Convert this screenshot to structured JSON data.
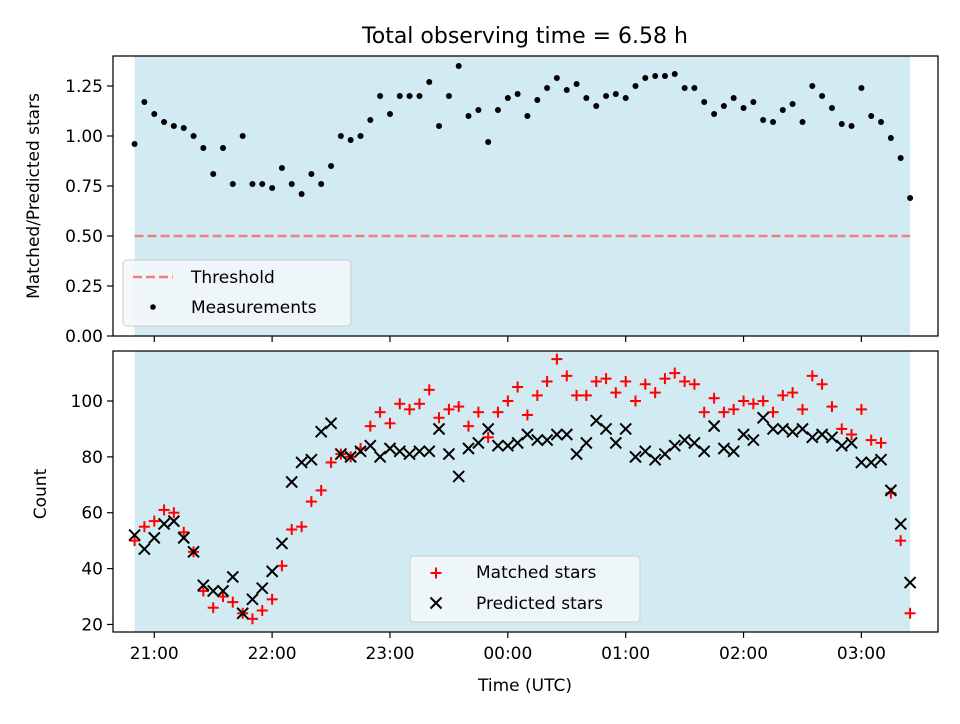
{
  "title": "Total observing time = 6.58 h",
  "colors": {
    "shade": "#add8e6",
    "threshold": "#f08080",
    "measurements": "#000000",
    "matched": "#ff0000",
    "predicted": "#000000"
  },
  "chart_data": [
    {
      "type": "scatter",
      "ylabel": "Matched/Predicted stars",
      "xlim": [
        -0.1833,
        6.8167
      ],
      "ylim": [
        0.0,
        1.4
      ],
      "yticks": [
        0.0,
        0.25,
        0.5,
        0.75,
        1.0,
        1.25
      ],
      "ytick_labels": [
        "0.00",
        "0.25",
        "0.50",
        "0.75",
        "1.00",
        "1.25"
      ],
      "shaded_x_range": [
        0.0,
        6.58
      ],
      "threshold": {
        "name": "Threshold",
        "value": 0.5,
        "style": "dashed"
      },
      "legend": {
        "location": "lower-left",
        "entries": [
          "Threshold",
          "Measurements"
        ]
      },
      "series": [
        {
          "name": "Measurements",
          "marker": "dot",
          "x": [
            0.0,
            0.083,
            0.167,
            0.25,
            0.333,
            0.417,
            0.5,
            0.583,
            0.667,
            0.75,
            0.833,
            0.917,
            1.0,
            1.083,
            1.167,
            1.25,
            1.333,
            1.417,
            1.5,
            1.583,
            1.667,
            1.75,
            1.833,
            1.917,
            2.0,
            2.083,
            2.167,
            2.25,
            2.333,
            2.417,
            2.5,
            2.583,
            2.667,
            2.75,
            2.833,
            2.917,
            3.0,
            3.083,
            3.167,
            3.25,
            3.333,
            3.417,
            3.5,
            3.583,
            3.667,
            3.75,
            3.833,
            3.917,
            4.0,
            4.083,
            4.167,
            4.25,
            4.333,
            4.417,
            4.5,
            4.583,
            4.667,
            4.75,
            4.833,
            4.917,
            5.0,
            5.083,
            5.167,
            5.25,
            5.333,
            5.417,
            5.5,
            5.583,
            5.667,
            5.75,
            5.833,
            5.917,
            6.0,
            6.083,
            6.167,
            6.25,
            6.333,
            6.417,
            6.5,
            6.58
          ],
          "y": [
            0.96,
            1.17,
            1.11,
            1.07,
            1.05,
            1.04,
            1.0,
            0.94,
            0.81,
            0.94,
            0.76,
            1.0,
            0.76,
            0.76,
            0.74,
            0.84,
            0.76,
            0.71,
            0.81,
            0.76,
            0.85,
            1.0,
            0.98,
            1.0,
            1.08,
            1.2,
            1.11,
            1.2,
            1.2,
            1.2,
            1.27,
            1.05,
            1.2,
            1.35,
            1.1,
            1.13,
            0.97,
            1.13,
            1.19,
            1.21,
            1.1,
            1.18,
            1.24,
            1.29,
            1.23,
            1.26,
            1.19,
            1.15,
            1.2,
            1.21,
            1.19,
            1.25,
            1.29,
            1.3,
            1.3,
            1.31,
            1.24,
            1.24,
            1.17,
            1.11,
            1.15,
            1.19,
            1.14,
            1.17,
            1.08,
            1.07,
            1.13,
            1.16,
            1.07,
            1.25,
            1.2,
            1.14,
            1.06,
            1.05,
            1.24,
            1.1,
            1.07,
            0.99,
            0.89,
            0.69
          ]
        }
      ]
    },
    {
      "type": "scatter",
      "xlabel": "Time (UTC)",
      "ylabel": "Count",
      "xlim": [
        -0.1833,
        6.8167
      ],
      "ylim": [
        17.3,
        117.9
      ],
      "yticks": [
        20,
        40,
        60,
        80,
        100
      ],
      "ytick_labels": [
        "20",
        "40",
        "60",
        "80",
        "100"
      ],
      "xticks": [
        0.1667,
        1.1667,
        2.1667,
        3.1667,
        4.1667,
        5.1667,
        6.1667
      ],
      "xtick_labels": [
        "21:00",
        "22:00",
        "23:00",
        "00:00",
        "01:00",
        "02:00",
        "03:00"
      ],
      "shaded_x_range": [
        0.0,
        6.58
      ],
      "legend": {
        "location": "lower-center",
        "entries": [
          "Matched stars",
          "Predicted stars"
        ]
      },
      "series": [
        {
          "name": "Matched stars",
          "marker": "plus",
          "x": [
            0.0,
            0.083,
            0.167,
            0.25,
            0.333,
            0.417,
            0.5,
            0.583,
            0.667,
            0.75,
            0.833,
            0.917,
            1.0,
            1.083,
            1.167,
            1.25,
            1.333,
            1.417,
            1.5,
            1.583,
            1.667,
            1.75,
            1.833,
            1.917,
            2.0,
            2.083,
            2.167,
            2.25,
            2.333,
            2.417,
            2.5,
            2.583,
            2.667,
            2.75,
            2.833,
            2.917,
            3.0,
            3.083,
            3.167,
            3.25,
            3.333,
            3.417,
            3.5,
            3.583,
            3.667,
            3.75,
            3.833,
            3.917,
            4.0,
            4.083,
            4.167,
            4.25,
            4.333,
            4.417,
            4.5,
            4.583,
            4.667,
            4.75,
            4.833,
            4.917,
            5.0,
            5.083,
            5.167,
            5.25,
            5.333,
            5.417,
            5.5,
            5.583,
            5.667,
            5.75,
            5.833,
            5.917,
            6.0,
            6.083,
            6.167,
            6.25,
            6.333,
            6.417,
            6.5,
            6.58
          ],
          "y": [
            50,
            55,
            57,
            61,
            60,
            53,
            46,
            32,
            26,
            30,
            28,
            24,
            22,
            25,
            29,
            41,
            54,
            55,
            64,
            68,
            78,
            81,
            80,
            83,
            91,
            96,
            92,
            99,
            97,
            99,
            104,
            94,
            97,
            98,
            91,
            96,
            87,
            96,
            100,
            105,
            95,
            102,
            107,
            115,
            109,
            102,
            102,
            107,
            108,
            103,
            107,
            100,
            106,
            103,
            108,
            110,
            107,
            106,
            96,
            101,
            96,
            97,
            100,
            99,
            100,
            96,
            102,
            103,
            97,
            109,
            106,
            98,
            90,
            88,
            97,
            86,
            85,
            67,
            50,
            24
          ]
        },
        {
          "name": "Predicted stars",
          "marker": "x",
          "x": [
            0.0,
            0.083,
            0.167,
            0.25,
            0.333,
            0.417,
            0.5,
            0.583,
            0.667,
            0.75,
            0.833,
            0.917,
            1.0,
            1.083,
            1.167,
            1.25,
            1.333,
            1.417,
            1.5,
            1.583,
            1.667,
            1.75,
            1.833,
            1.917,
            2.0,
            2.083,
            2.167,
            2.25,
            2.333,
            2.417,
            2.5,
            2.583,
            2.667,
            2.75,
            2.833,
            2.917,
            3.0,
            3.083,
            3.167,
            3.25,
            3.333,
            3.417,
            3.5,
            3.583,
            3.667,
            3.75,
            3.833,
            3.917,
            4.0,
            4.083,
            4.167,
            4.25,
            4.333,
            4.417,
            4.5,
            4.583,
            4.667,
            4.75,
            4.833,
            4.917,
            5.0,
            5.083,
            5.167,
            5.25,
            5.333,
            5.417,
            5.5,
            5.583,
            5.667,
            5.75,
            5.833,
            5.917,
            6.0,
            6.083,
            6.167,
            6.25,
            6.333,
            6.417,
            6.5,
            6.58
          ],
          "y": [
            52,
            47,
            51,
            56,
            57,
            51,
            46,
            34,
            32,
            32,
            37,
            24,
            29,
            33,
            39,
            49,
            71,
            78,
            79,
            89,
            92,
            81,
            80,
            82,
            84,
            80,
            83,
            82,
            81,
            82,
            82,
            90,
            81,
            73,
            83,
            85,
            90,
            84,
            84,
            85,
            88,
            86,
            86,
            88,
            88,
            81,
            85,
            93,
            90,
            85,
            90,
            80,
            82,
            79,
            81,
            84,
            86,
            85,
            82,
            91,
            83,
            82,
            88,
            86,
            94,
            90,
            90,
            89,
            90,
            87,
            88,
            87,
            84,
            85,
            78,
            78,
            79,
            68,
            56,
            35
          ]
        }
      ]
    }
  ]
}
